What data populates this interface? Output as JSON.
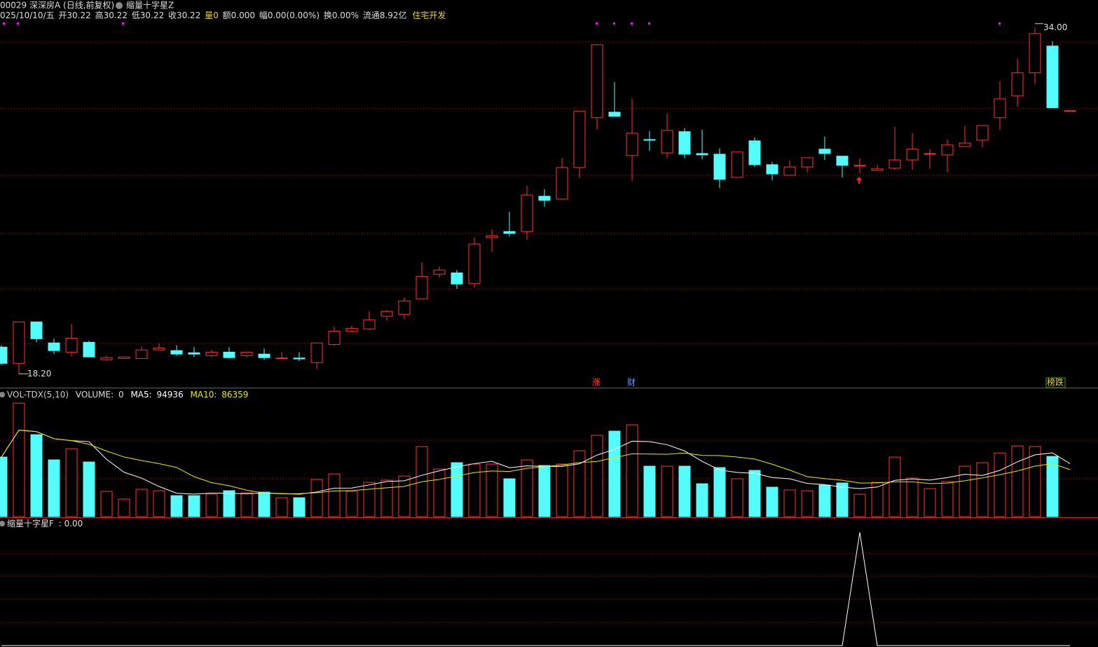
{
  "header": {
    "code": "00029 深深房A (日线,前复权)",
    "formula": "缩量十字星Z",
    "date": "025/10/10/五",
    "open": "开30.22",
    "high": "高30.22",
    "low": "低30.22",
    "close": "收30.22",
    "volume": "量0",
    "amount": "额0.000",
    "range": "幅0.00(0.00%)",
    "turnover": "换0.00%",
    "float": "流通8.92亿",
    "sector": "住宅开发"
  },
  "markers": {
    "rise": "涨",
    "finance": "财",
    "board": "榜跌"
  },
  "chart_data": [
    {
      "type": "candlestick",
      "up_color": "#ff3232",
      "down_color": "#54fcfc",
      "ylim": [
        17.6,
        34.6
      ],
      "open": [
        19.42,
        18.68,
        20.57,
        19.61,
        19.19,
        19.64,
        18.84,
        18.9,
        18.9,
        19.29,
        19.26,
        19.16,
        19.03,
        19.19,
        19.03,
        19.1,
        18.9,
        18.92,
        18.71,
        19.54,
        20.15,
        20.25,
        20.83,
        20.92,
        21.63,
        22.75,
        22.81,
        22.33,
        24.42,
        24.7,
        24.7,
        26.31,
        26.18,
        27.62,
        29.9,
        30.15,
        28.17,
        28.9,
        28.29,
        29.26,
        28.26,
        28.23,
        27.17,
        28.84,
        27.75,
        27.27,
        27.65,
        28.46,
        28.14,
        27.72,
        27.49,
        27.59,
        27.97,
        28.23,
        28.2,
        28.58,
        28.87,
        29.9,
        30.89,
        31.95,
        33.17,
        30.22
      ],
      "high": [
        19.5,
        20.57,
        20.57,
        19.8,
        20.47,
        19.7,
        19.03,
        19.0,
        19.45,
        19.58,
        19.51,
        19.42,
        19.29,
        19.42,
        19.2,
        19.35,
        19.19,
        19.19,
        19.61,
        20.35,
        20.41,
        21.05,
        21.12,
        21.69,
        23.29,
        23.1,
        22.94,
        24.42,
        24.8,
        25.6,
        26.79,
        26.63,
        28.04,
        30.19,
        33.23,
        31.53,
        30.76,
        29.29,
        30.09,
        29.42,
        29.35,
        28.49,
        28.33,
        29.0,
        27.88,
        27.94,
        28.07,
        29.03,
        28.14,
        28.04,
        27.75,
        29.48,
        29.19,
        28.46,
        28.9,
        29.51,
        29.54,
        31.56,
        32.59,
        34.0,
        33.39,
        30.22
      ],
      "low": [
        18.6,
        18.2,
        19.64,
        19.1,
        19.0,
        18.95,
        18.78,
        18.88,
        18.9,
        19.26,
        19.03,
        18.97,
        18.97,
        18.9,
        18.95,
        18.84,
        18.88,
        18.78,
        18.42,
        19.48,
        20.1,
        20.2,
        20.63,
        20.7,
        21.63,
        22.59,
        22.08,
        22.14,
        23.78,
        24.48,
        24.32,
        25.83,
        26.18,
        27.14,
        29.35,
        29.96,
        27.01,
        28.39,
        28.04,
        28.04,
        28.0,
        26.69,
        27.17,
        27.65,
        27.04,
        27.27,
        27.4,
        27.97,
        27.17,
        27.37,
        27.49,
        27.52,
        27.52,
        27.56,
        27.4,
        28.58,
        28.55,
        29.35,
        30.41,
        31.44,
        30.35,
        30.22
      ],
      "close": [
        18.68,
        20.57,
        19.8,
        19.26,
        19.83,
        18.97,
        18.94,
        18.97,
        19.29,
        19.38,
        19.1,
        19.1,
        19.19,
        18.94,
        19.19,
        18.94,
        18.92,
        18.88,
        19.61,
        20.15,
        20.28,
        20.67,
        21.05,
        21.53,
        22.65,
        22.94,
        22.3,
        24.13,
        24.51,
        24.61,
        26.37,
        26.12,
        27.62,
        30.19,
        33.23,
        29.96,
        29.19,
        28.87,
        29.32,
        28.23,
        28.2,
        27.08,
        28.33,
        27.75,
        27.33,
        27.65,
        28.07,
        28.26,
        27.72,
        27.72,
        27.56,
        27.97,
        28.46,
        28.26,
        28.65,
        28.74,
        29.54,
        30.76,
        31.95,
        33.74,
        30.35,
        30.22
      ],
      "low_label": {
        "value": 18.2,
        "label": "18.20"
      },
      "high_label": {
        "value": 34,
        "label": "34.00"
      }
    },
    {
      "type": "bar",
      "name": "VOL-TDX(5,10)",
      "volume_label": "VOLUME:",
      "volume": 0,
      "ma5_label": "MA5:",
      "ma5": 94936,
      "ma10_label": "MA10:",
      "ma10": 86359,
      "ma5_color": "#ffffff",
      "ma10_color": "#e8e800",
      "ylim": [
        0,
        240000
      ],
      "values": [
        112000,
        213500,
        154200,
        106800,
        127800,
        102800,
        47400,
        33000,
        51400,
        48800,
        39500,
        39500,
        42200,
        48800,
        44800,
        46100,
        35600,
        35600,
        69900,
        80400,
        47400,
        64600,
        68500,
        76400,
        131800,
        89600,
        101500,
        98900,
        98900,
        71200,
        106800,
        96200,
        98900,
        123900,
        152900,
        160800,
        172700,
        94900,
        94900,
        94900,
        61900,
        92300,
        71200,
        87000,
        55400,
        50100,
        48800,
        59300,
        63300,
        42200,
        64600,
        112000,
        72500,
        52700,
        65900,
        94900,
        101500,
        119900,
        133100,
        131800,
        113300,
        0
      ]
    },
    {
      "type": "line",
      "name": "缩量十字星F",
      "readout": ": 0.00",
      "color": "#ffffff",
      "ylim": [
        0,
        1.12
      ],
      "values": [
        0,
        0,
        0,
        0,
        0,
        0,
        0,
        0,
        0,
        0,
        0,
        0,
        0,
        0,
        0,
        0,
        0,
        0,
        0,
        0,
        0,
        0,
        0,
        0,
        0,
        0,
        0,
        0,
        0,
        0,
        0,
        0,
        0,
        0,
        0,
        0,
        0,
        0,
        0,
        0,
        0,
        0,
        0,
        0,
        0,
        0,
        0,
        0,
        0,
        1,
        0,
        0,
        0,
        0,
        0,
        0,
        0,
        0,
        0,
        0,
        0,
        0
      ]
    }
  ]
}
